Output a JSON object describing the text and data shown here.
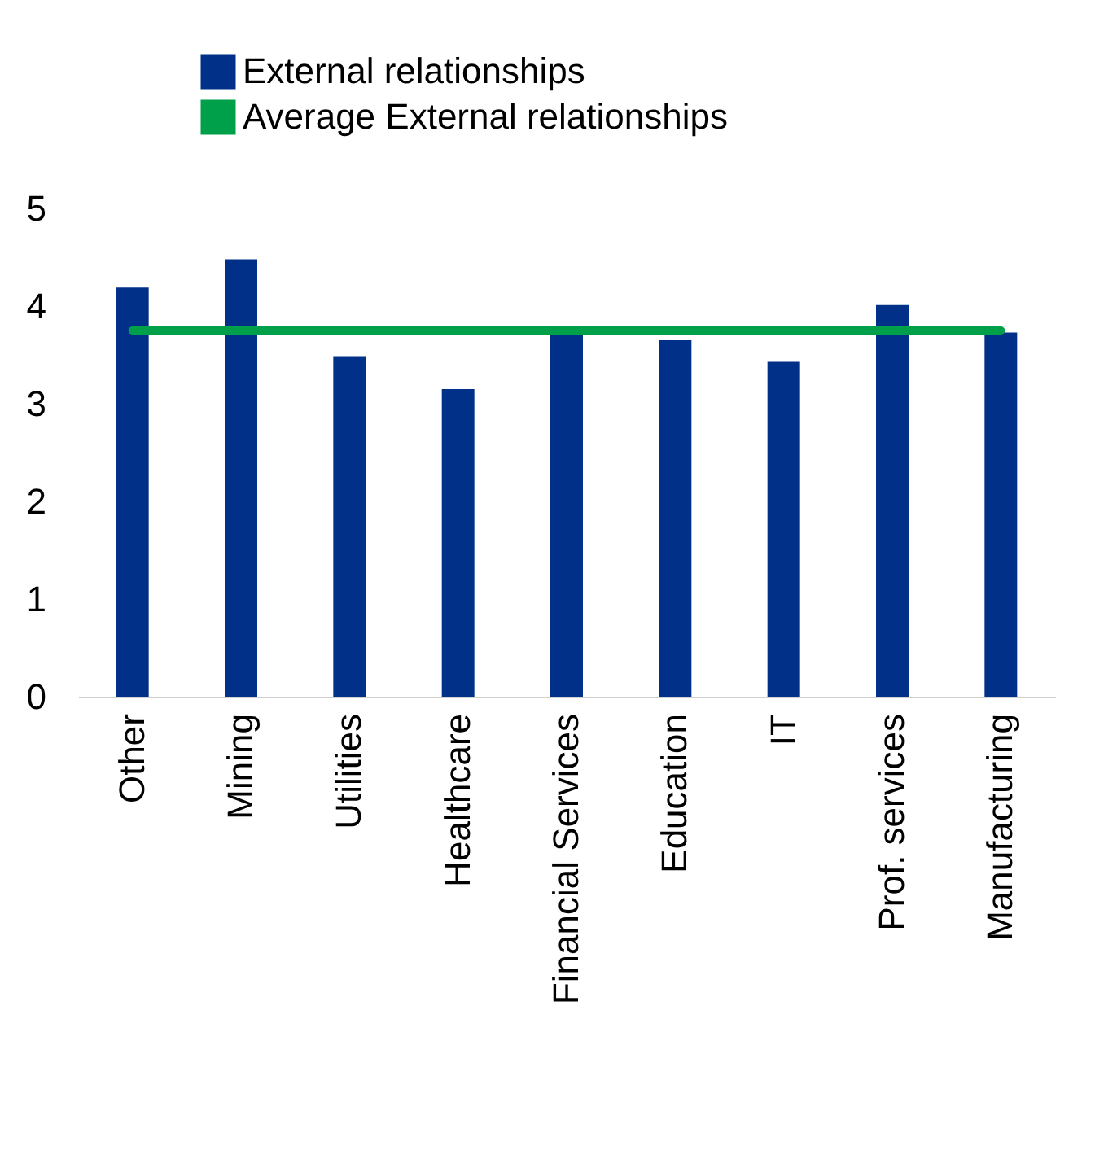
{
  "chart_data": {
    "type": "bar",
    "categories": [
      "Other",
      "Mining",
      "Utilities",
      "Healthcare",
      "Financial Services",
      "Education",
      "IT",
      "Prof. services",
      "Manufacturing"
    ],
    "series": [
      {
        "name": "External relationships",
        "color": "#003087",
        "values": [
          4.19,
          4.48,
          3.48,
          3.15,
          3.73,
          3.65,
          3.43,
          4.01,
          3.73
        ]
      },
      {
        "name": "Average External relationships",
        "type": "line",
        "color": "#00a04b",
        "values": [
          3.75,
          3.75,
          3.75,
          3.75,
          3.75,
          3.75,
          3.75,
          3.75,
          3.75
        ]
      }
    ],
    "ylim": [
      0,
      5
    ],
    "yticks": [
      0,
      1,
      2,
      3,
      4,
      5
    ],
    "grid": false,
    "legend": "top"
  }
}
